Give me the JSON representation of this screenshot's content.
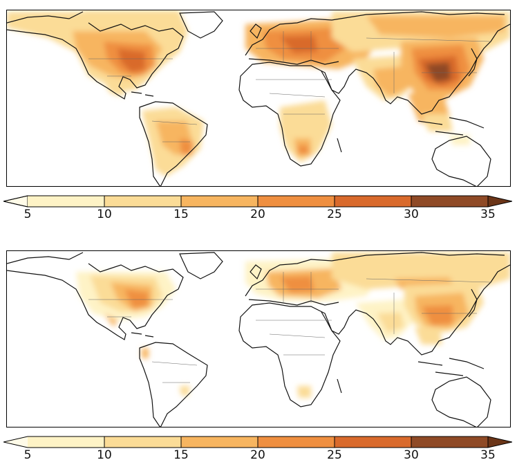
{
  "colorbar": {
    "labels": [
      "5",
      "10",
      "15",
      "20",
      "25",
      "30",
      "35"
    ],
    "colors": [
      "#fef3c6",
      "#fbdc97",
      "#f7b560",
      "#ef8f40",
      "#d96a2c",
      "#8f4a26"
    ],
    "extend": "both"
  },
  "panels": [
    {
      "id": "top",
      "description_level": "higher concentrations"
    },
    {
      "id": "bottom",
      "description_level": "lower concentrations"
    }
  ]
}
